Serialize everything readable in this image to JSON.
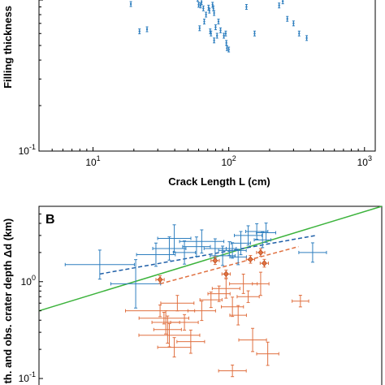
{
  "chart_data": [
    {
      "type": "scatter",
      "xscale": "log",
      "yscale": "log",
      "xlim": [
        4,
        1200
      ],
      "ylim": [
        0.1,
        1
      ],
      "xlabel": "Crack Length  L  (cm)",
      "ylabel": "Filling thickness",
      "x_ticks": [
        {
          "value": 10,
          "base": "10",
          "exp": "1"
        },
        {
          "value": 100,
          "base": "10",
          "exp": "2"
        },
        {
          "value": 1000,
          "base": "10",
          "exp": "3"
        }
      ],
      "y_ticks": [
        {
          "value": 0.1,
          "base": "10",
          "exp": "-1"
        }
      ],
      "marker_color": "#2f7fbf",
      "points": [
        [
          19,
          0.94
        ],
        [
          22,
          0.62
        ],
        [
          25,
          0.64
        ],
        [
          59,
          1.02
        ],
        [
          60,
          0.93
        ],
        [
          62,
          0.92
        ],
        [
          61,
          0.65
        ],
        [
          63,
          0.97
        ],
        [
          65,
          0.88
        ],
        [
          66,
          0.72
        ],
        [
          68,
          0.8
        ],
        [
          71,
          0.89
        ],
        [
          72,
          0.85
        ],
        [
          73,
          0.62
        ],
        [
          74,
          0.6
        ],
        [
          76,
          0.93
        ],
        [
          77,
          0.88
        ],
        [
          78,
          0.82
        ],
        [
          80,
          0.66
        ],
        [
          82,
          0.58
        ],
        [
          84,
          0.72
        ],
        [
          87,
          0.63
        ],
        [
          92,
          0.58
        ],
        [
          95,
          0.6
        ],
        [
          96,
          0.52
        ],
        [
          97,
          0.48
        ],
        [
          100,
          0.47
        ],
        [
          135,
          0.9
        ],
        [
          155,
          0.6
        ],
        [
          235,
          0.92
        ],
        [
          250,
          0.98
        ],
        [
          270,
          0.75
        ],
        [
          300,
          0.7
        ],
        [
          330,
          0.6
        ],
        [
          375,
          0.56
        ],
        [
          78,
          0.54
        ]
      ]
    },
    {
      "type": "scatter",
      "xscale": "log",
      "yscale": "log",
      "xlim": [
        4,
        1200
      ],
      "ylim": [
        0.1,
        6
      ],
      "ylabel": "en th. and obs. crater depth  Δd (km)",
      "panel_label": "B",
      "y_ticks": [
        {
          "value": 1,
          "base": "10",
          "exp": "0"
        },
        {
          "value": 0.1,
          "base": "10",
          "exp": "-1"
        }
      ],
      "series": [
        {
          "color": "#2f7fbf",
          "points": [
            {
              "x": 11,
              "y": 1.5,
              "dx": 0.25,
              "dy": 0.15
            },
            {
              "x": 20,
              "y": 0.95,
              "dx": 0.18,
              "dy": 0.25
            },
            {
              "x": 28,
              "y": 1.9,
              "dx": 0.14,
              "dy": 0.12
            },
            {
              "x": 35,
              "y": 2.2,
              "dx": 0.12,
              "dy": 0.12
            },
            {
              "x": 38,
              "y": 2.8,
              "dx": 0.12,
              "dy": 0.14
            },
            {
              "x": 45,
              "y": 2.0,
              "dx": 0.08,
              "dy": 0.12
            },
            {
              "x": 55,
              "y": 2.3,
              "dx": 0.1,
              "dy": 0.1
            },
            {
              "x": 60,
              "y": 2.6,
              "dx": 0.16,
              "dy": 0.12
            },
            {
              "x": 75,
              "y": 2.2,
              "dx": 0.08,
              "dy": 0.1
            },
            {
              "x": 85,
              "y": 1.85,
              "dx": 0.09,
              "dy": 0.1
            },
            {
              "x": 100,
              "y": 2.1,
              "dx": 0.1,
              "dy": 0.08
            },
            {
              "x": 115,
              "y": 2.5,
              "dx": 0.07,
              "dy": 0.12
            },
            {
              "x": 130,
              "y": 3.0,
              "dx": 0.1,
              "dy": 0.1
            },
            {
              "x": 150,
              "y": 3.3,
              "dx": 0.08,
              "dy": 0.08
            },
            {
              "x": 165,
              "y": 2.7,
              "dx": 0.06,
              "dy": 0.08
            },
            {
              "x": 175,
              "y": 3.2,
              "dx": 0.07,
              "dy": 0.1
            },
            {
              "x": 110,
              "y": 1.8,
              "dx": 0.06,
              "dy": 0.08
            },
            {
              "x": 95,
              "y": 2.2,
              "dx": 0.05,
              "dy": 0.07
            },
            {
              "x": 380,
              "y": 2.0,
              "dx": 0.1,
              "dy": 0.1
            }
          ]
        },
        {
          "color": "#e07040",
          "points": [
            {
              "x": 30,
              "y": 0.5,
              "dx": 0.25,
              "dy": 0.06
            },
            {
              "x": 32,
              "y": 0.42,
              "dx": 0.18,
              "dy": 0.06
            },
            {
              "x": 33,
              "y": 0.38,
              "dx": 0.1,
              "dy": 0.12
            },
            {
              "x": 34,
              "y": 0.32,
              "dx": 0.1,
              "dy": 0.14
            },
            {
              "x": 35,
              "y": 0.28,
              "dx": 0.22,
              "dy": 0.12
            },
            {
              "x": 38,
              "y": 0.21,
              "dx": 0.12,
              "dy": 0.1
            },
            {
              "x": 40,
              "y": 0.6,
              "dx": 0.12,
              "dy": 0.08
            },
            {
              "x": 45,
              "y": 0.38,
              "dx": 0.1,
              "dy": 0.08
            },
            {
              "x": 50,
              "y": 0.24,
              "dx": 0.1,
              "dy": 0.12
            },
            {
              "x": 60,
              "y": 0.5,
              "dx": 0.1,
              "dy": 0.1
            },
            {
              "x": 70,
              "y": 0.65,
              "dx": 0.08,
              "dy": 0.08
            },
            {
              "x": 80,
              "y": 0.75,
              "dx": 0.08,
              "dy": 0.08
            },
            {
              "x": 90,
              "y": 0.85,
              "dx": 0.1,
              "dy": 0.1
            },
            {
              "x": 100,
              "y": 0.55,
              "dx": 0.08,
              "dy": 0.1
            },
            {
              "x": 110,
              "y": 0.45,
              "dx": 0.06,
              "dy": 0.1
            },
            {
              "x": 120,
              "y": 0.95,
              "dx": 0.1,
              "dy": 0.1
            },
            {
              "x": 130,
              "y": 0.7,
              "dx": 0.08,
              "dy": 0.06
            },
            {
              "x": 140,
              "y": 0.25,
              "dx": 0.1,
              "dy": 0.12
            },
            {
              "x": 180,
              "y": 0.18,
              "dx": 0.08,
              "dy": 0.12
            },
            {
              "x": 100,
              "y": 0.12,
              "dx": 0.1,
              "dy": 0.06
            },
            {
              "x": 310,
              "y": 0.63,
              "dx": 0.06,
              "dy": 0.06
            },
            {
              "x": 160,
              "y": 0.95,
              "dx": 0.06,
              "dy": 0.12
            }
          ]
        },
        {
          "color": "#e07040",
          "marker": "diamond",
          "points": [
            {
              "x": 30,
              "y": 1.05,
              "dx": 0.03,
              "dy": 0.04
            },
            {
              "x": 75,
              "y": 1.65,
              "dx": 0.03,
              "dy": 0.04
            },
            {
              "x": 90,
              "y": 1.2,
              "dx": 0.03,
              "dy": 0.04
            },
            {
              "x": 135,
              "y": 1.7,
              "dx": 0.03,
              "dy": 0.04
            },
            {
              "x": 160,
              "y": 2.0,
              "dx": 0.03,
              "dy": 0.04
            },
            {
              "x": 170,
              "y": 1.55,
              "dx": 0.03,
              "dy": 0.04
            }
          ]
        }
      ],
      "fit_lines": [
        {
          "color": "#3cb33c",
          "style": "solid",
          "x": [
            4,
            1200
          ],
          "y": [
            0.5,
            6.0
          ]
        },
        {
          "color": "#1f5fa8",
          "style": "dashed",
          "x": [
            11,
            400
          ],
          "y": [
            1.2,
            3.0
          ]
        },
        {
          "color": "#e07040",
          "style": "dashed",
          "x": [
            30,
            300
          ],
          "y": [
            0.95,
            2.3
          ]
        }
      ]
    }
  ]
}
